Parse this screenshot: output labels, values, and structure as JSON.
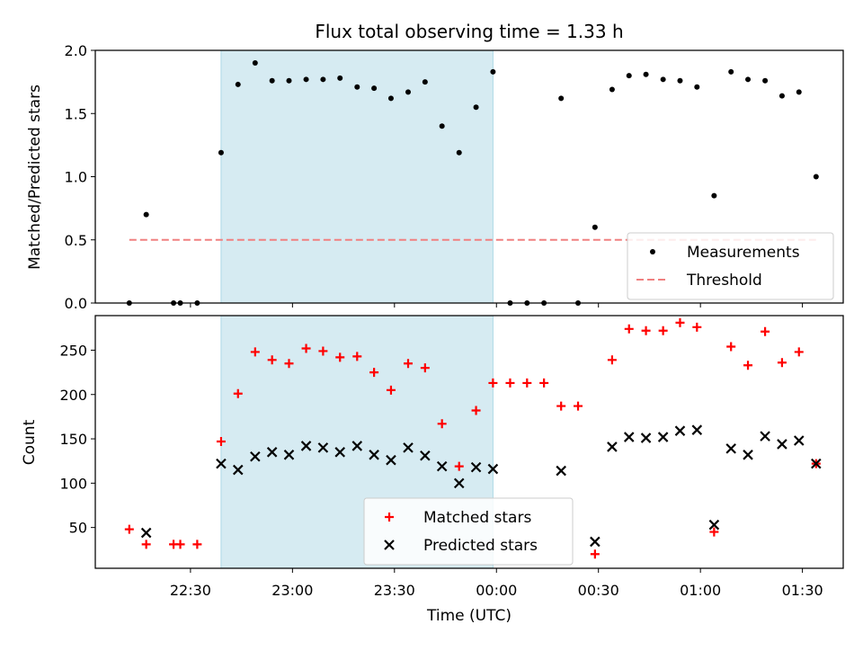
{
  "chart_data": [
    {
      "type": "scatter",
      "title": "Flux total observing time = 1.33 h",
      "ylabel": "Matched/Predicted stars",
      "ylim": [
        0,
        2.0
      ],
      "yticks": [
        0.0,
        0.5,
        1.0,
        1.5,
        2.0
      ],
      "ytick_labels": [
        "0.0",
        "0.5",
        "1.0",
        "1.5",
        "2.0"
      ],
      "xlim": [
        22.0333,
        25.7
      ],
      "shaded_span": [
        22.65,
        23.983
      ],
      "shaded_color": "#add8e6",
      "series": [
        {
          "name": "Measurements",
          "color": "#000000",
          "marker": "dot",
          "points": [
            [
              22.2,
              0.0
            ],
            [
              22.283,
              0.7
            ],
            [
              22.417,
              0.0
            ],
            [
              22.45,
              0.0
            ],
            [
              22.533,
              0.0
            ],
            [
              22.65,
              1.19
            ],
            [
              22.733,
              1.73
            ],
            [
              22.817,
              1.9
            ],
            [
              22.9,
              1.76
            ],
            [
              22.983,
              1.76
            ],
            [
              23.067,
              1.77
            ],
            [
              23.15,
              1.77
            ],
            [
              23.233,
              1.78
            ],
            [
              23.317,
              1.71
            ],
            [
              23.4,
              1.7
            ],
            [
              23.483,
              1.62
            ],
            [
              23.567,
              1.67
            ],
            [
              23.65,
              1.75
            ],
            [
              23.733,
              1.4
            ],
            [
              23.817,
              1.19
            ],
            [
              23.9,
              1.55
            ],
            [
              23.983,
              1.83
            ],
            [
              24.067,
              0.0
            ],
            [
              24.15,
              0.0
            ],
            [
              24.233,
              0.0
            ],
            [
              24.317,
              1.62
            ],
            [
              24.4,
              0.0
            ],
            [
              24.483,
              0.6
            ],
            [
              24.567,
              1.69
            ],
            [
              24.65,
              1.8
            ],
            [
              24.733,
              1.81
            ],
            [
              24.817,
              1.77
            ],
            [
              24.9,
              1.76
            ],
            [
              24.983,
              1.71
            ],
            [
              25.067,
              0.85
            ],
            [
              25.15,
              1.83
            ],
            [
              25.233,
              1.77
            ],
            [
              25.317,
              1.76
            ],
            [
              25.4,
              1.64
            ],
            [
              25.483,
              1.67
            ],
            [
              25.567,
              1.0
            ]
          ]
        },
        {
          "name": "Threshold",
          "color": "#f08080",
          "style": "dashed",
          "points": [
            [
              22.2,
              0.5
            ],
            [
              25.567,
              0.5
            ]
          ]
        }
      ],
      "legend": "lower right"
    },
    {
      "type": "scatter",
      "xlabel": "Time (UTC)",
      "ylabel": "Count",
      "ylim": [
        4,
        289
      ],
      "yticks": [
        50,
        100,
        150,
        200,
        250
      ],
      "ytick_labels": [
        "50",
        "100",
        "150",
        "200",
        "250"
      ],
      "xlim": [
        22.0333,
        25.7
      ],
      "xticks": [
        22.5,
        23.0,
        23.5,
        24.0,
        24.5,
        25.0,
        25.5
      ],
      "xtick_labels": [
        "22:30",
        "23:00",
        "23:30",
        "00:00",
        "00:30",
        "01:00",
        "01:30"
      ],
      "shaded_span": [
        22.65,
        23.983
      ],
      "shaded_color": "#add8e6",
      "series": [
        {
          "name": "Matched stars",
          "color": "#ff0000",
          "marker": "plus",
          "points": [
            [
              22.2,
              48
            ],
            [
              22.283,
              31
            ],
            [
              22.417,
              31
            ],
            [
              22.45,
              31
            ],
            [
              22.533,
              31
            ],
            [
              22.65,
              147
            ],
            [
              22.733,
              201
            ],
            [
              22.817,
              248
            ],
            [
              22.9,
              239
            ],
            [
              22.983,
              235
            ],
            [
              23.067,
              252
            ],
            [
              23.15,
              249
            ],
            [
              23.233,
              242
            ],
            [
              23.317,
              243
            ],
            [
              23.4,
              225
            ],
            [
              23.483,
              205
            ],
            [
              23.567,
              235
            ],
            [
              23.65,
              230
            ],
            [
              23.733,
              167
            ],
            [
              23.817,
              119
            ],
            [
              23.9,
              182
            ],
            [
              23.983,
              213
            ],
            [
              24.067,
              213
            ],
            [
              24.15,
              213
            ],
            [
              24.233,
              213
            ],
            [
              24.317,
              187
            ],
            [
              24.4,
              187
            ],
            [
              24.483,
              20
            ],
            [
              24.567,
              239
            ],
            [
              24.65,
              274
            ],
            [
              24.733,
              272
            ],
            [
              24.817,
              272
            ],
            [
              24.9,
              281
            ],
            [
              24.983,
              276
            ],
            [
              25.067,
              45
            ],
            [
              25.15,
              254
            ],
            [
              25.233,
              233
            ],
            [
              25.317,
              271
            ],
            [
              25.4,
              236
            ],
            [
              25.483,
              248
            ],
            [
              25.567,
              122
            ]
          ]
        },
        {
          "name": "Predicted stars",
          "color": "#000000",
          "marker": "x",
          "points": [
            [
              22.283,
              44
            ],
            [
              22.65,
              122
            ],
            [
              22.733,
              115
            ],
            [
              22.817,
              130
            ],
            [
              22.9,
              135
            ],
            [
              22.983,
              132
            ],
            [
              23.067,
              142
            ],
            [
              23.15,
              140
            ],
            [
              23.233,
              135
            ],
            [
              23.317,
              142
            ],
            [
              23.4,
              132
            ],
            [
              23.483,
              126
            ],
            [
              23.567,
              140
            ],
            [
              23.65,
              131
            ],
            [
              23.733,
              119
            ],
            [
              23.817,
              100
            ],
            [
              23.9,
              118
            ],
            [
              23.983,
              116
            ],
            [
              24.317,
              114
            ],
            [
              24.483,
              34
            ],
            [
              24.567,
              141
            ],
            [
              24.65,
              152
            ],
            [
              24.733,
              151
            ],
            [
              24.817,
              152
            ],
            [
              24.9,
              159
            ],
            [
              24.983,
              160
            ],
            [
              25.067,
              53
            ],
            [
              25.15,
              139
            ],
            [
              25.233,
              132
            ],
            [
              25.317,
              153
            ],
            [
              25.4,
              144
            ],
            [
              25.483,
              148
            ],
            [
              25.567,
              122
            ]
          ]
        }
      ],
      "legend": "lower center"
    }
  ]
}
